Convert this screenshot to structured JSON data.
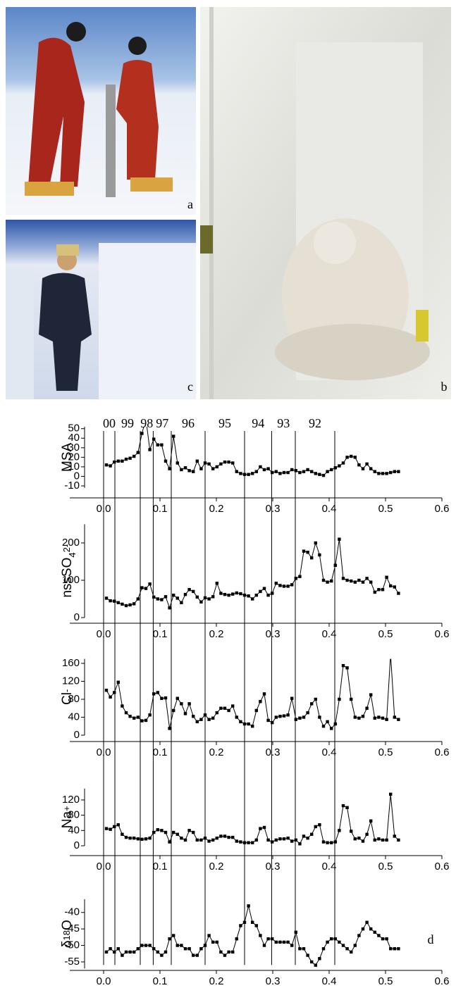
{
  "photos": [
    {
      "label": "a"
    },
    {
      "label": "b"
    },
    {
      "label": "c"
    }
  ],
  "panel_label": "d",
  "x_axis": {
    "x": [
      0.005,
      0.012,
      0.019,
      0.026,
      0.033,
      0.04,
      0.047,
      0.054,
      0.061,
      0.068,
      0.075,
      0.082,
      0.089,
      0.096,
      0.103,
      0.11,
      0.117,
      0.124,
      0.131,
      0.138,
      0.145,
      0.152,
      0.159,
      0.166,
      0.173,
      0.18,
      0.187,
      0.194,
      0.201,
      0.208,
      0.215,
      0.222,
      0.229,
      0.236,
      0.243,
      0.25,
      0.257,
      0.264,
      0.271,
      0.278,
      0.285,
      0.292,
      0.299,
      0.306,
      0.313,
      0.32,
      0.327,
      0.334,
      0.341,
      0.348,
      0.355,
      0.362,
      0.369,
      0.376,
      0.383,
      0.39,
      0.397,
      0.404,
      0.411,
      0.418,
      0.425,
      0.432,
      0.439,
      0.446,
      0.453,
      0.46,
      0.467,
      0.474,
      0.481,
      0.488,
      0.495,
      0.502,
      0.509,
      0.516,
      0.523
    ],
    "xlim": [
      -0.06,
      0.6
    ],
    "xticks": [
      {
        "value": 0,
        "label": "0.0"
      },
      0.1,
      0.2,
      0.3,
      0.4,
      0.5,
      0.6
    ],
    "year_lines": [
      0,
      0.02,
      0.065,
      0.088,
      0.12,
      0.18,
      0.25,
      0.298,
      0.34,
      0.41
    ],
    "year_labels": [
      "00",
      "99",
      "98",
      "97",
      "96",
      "95",
      "94",
      "93",
      "92"
    ]
  },
  "chart_data": [
    {
      "type": "line",
      "ylabel": [
        {
          "text": "MSA"
        }
      ],
      "color": "#000000",
      "ylim": [
        -12,
        52
      ],
      "yticks": [
        -10,
        0,
        10,
        20,
        30,
        40,
        50
      ],
      "values": [
        12,
        11,
        15,
        16,
        16,
        18,
        19,
        21,
        25,
        45,
        60,
        28,
        39,
        33,
        33,
        16,
        8,
        42,
        14,
        7,
        9,
        6,
        5,
        16,
        8,
        14,
        13,
        8,
        10,
        13,
        15,
        15,
        14,
        5,
        3,
        2,
        2,
        3,
        5,
        10,
        7,
        8,
        4,
        5,
        3,
        4,
        4,
        7,
        6,
        4,
        5,
        7,
        5,
        3,
        2,
        1,
        5,
        7,
        9,
        11,
        14,
        20,
        21,
        20,
        12,
        8,
        13,
        8,
        5,
        3,
        3,
        3,
        4,
        5,
        5
      ]
    },
    {
      "type": "line",
      "ylabel": [
        {
          "text": "nssSO"
        },
        {
          "text": "4",
          "shift": "sub"
        },
        {
          "text": "2-",
          "shift": "sup"
        }
      ],
      "color": "#000000",
      "ylim": [
        0,
        250
      ],
      "yticks": [
        0,
        100,
        200
      ],
      "values": [
        52,
        45,
        44,
        40,
        36,
        32,
        34,
        37,
        50,
        80,
        78,
        90,
        55,
        50,
        48,
        56,
        26,
        60,
        52,
        40,
        62,
        75,
        70,
        55,
        42,
        53,
        50,
        56,
        92,
        65,
        62,
        60,
        63,
        66,
        64,
        60,
        58,
        50,
        60,
        70,
        78,
        60,
        65,
        92,
        86,
        84,
        84,
        88,
        105,
        110,
        178,
        175,
        160,
        200,
        168,
        100,
        95,
        98,
        140,
        210,
        105,
        100,
        98,
        95,
        100,
        95,
        105,
        95,
        68,
        75,
        75,
        108,
        85,
        82,
        65
      ]
    },
    {
      "type": "line",
      "ylabel": [
        {
          "text": "Cl"
        },
        {
          "text": "-",
          "shift": "sup"
        }
      ],
      "color": "#000000",
      "ylim": [
        0,
        170
      ],
      "yticks": [
        0,
        40,
        80,
        120,
        160
      ],
      "values": [
        100,
        85,
        95,
        118,
        65,
        50,
        42,
        38,
        40,
        32,
        33,
        45,
        92,
        95,
        82,
        83,
        15,
        55,
        82,
        70,
        48,
        70,
        42,
        30,
        35,
        45,
        35,
        38,
        50,
        60,
        60,
        55,
        65,
        40,
        30,
        25,
        25,
        20,
        55,
        75,
        92,
        33,
        28,
        40,
        42,
        43,
        45,
        82,
        35,
        38,
        40,
        50,
        70,
        80,
        40,
        20,
        30,
        15,
        25,
        80,
        155,
        150,
        80,
        40,
        38,
        42,
        60,
        90,
        38,
        40,
        38,
        35,
        180,
        40,
        35
      ]
    },
    {
      "type": "line",
      "ylabel": [
        {
          "text": "Na"
        },
        {
          "text": "+",
          "shift": "sup"
        }
      ],
      "color": "#000000",
      "ylim": [
        0,
        150
      ],
      "yticks": [
        0,
        40,
        80,
        120
      ],
      "values": [
        45,
        43,
        50,
        55,
        30,
        22,
        20,
        20,
        18,
        17,
        18,
        20,
        35,
        42,
        40,
        35,
        10,
        35,
        30,
        20,
        15,
        40,
        35,
        15,
        15,
        20,
        12,
        15,
        20,
        25,
        25,
        22,
        22,
        12,
        10,
        8,
        8,
        8,
        15,
        45,
        48,
        15,
        10,
        15,
        18,
        18,
        20,
        12,
        15,
        5,
        25,
        20,
        30,
        50,
        55,
        10,
        8,
        8,
        10,
        40,
        105,
        100,
        38,
        18,
        20,
        12,
        30,
        65,
        15,
        18,
        15,
        15,
        135,
        25,
        15
      ]
    },
    {
      "type": "line",
      "ylabel": [
        {
          "text": "δ"
        },
        {
          "text": "18",
          "shift": "sup"
        },
        {
          "text": "O"
        }
      ],
      "color": "#000000",
      "ylim": [
        -57,
        -36
      ],
      "yticks": [
        -55,
        -50,
        -45,
        -40
      ],
      "values": [
        -52,
        -51,
        -52,
        -51,
        -53,
        -52,
        -52,
        -52,
        -51,
        -50,
        -50,
        -50,
        -51,
        -52,
        -53,
        -52,
        -48,
        -47,
        -50,
        -50,
        -51,
        -51,
        -53,
        -53,
        -51,
        -50,
        -47,
        -49,
        -49,
        -52,
        -53,
        -52,
        -52,
        -48,
        -44,
        -43,
        -38,
        -43,
        -44,
        -47,
        -50,
        -48,
        -48,
        -49,
        -49,
        -49,
        -49,
        -50,
        -46,
        -51,
        -51,
        -53,
        -55,
        -56,
        -54,
        -51,
        -49,
        -48,
        -48,
        -49,
        -50,
        -51,
        -52,
        -50,
        -47,
        -45,
        -43,
        -45,
        -46,
        -47,
        -48,
        -48,
        -51,
        -51,
        -51
      ]
    }
  ]
}
